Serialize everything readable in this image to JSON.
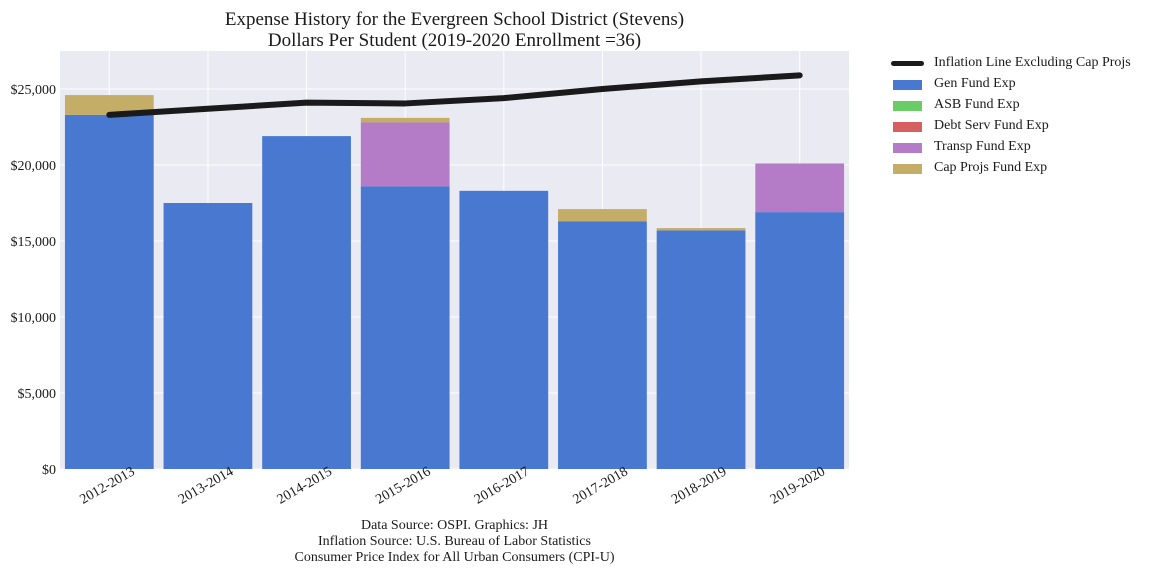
{
  "chart_data": {
    "type": "bar",
    "stacked": true,
    "title": "Expense History for the Evergreen School District (Stevens)",
    "subtitle": "Dollars Per Student (2019-2020 Enrollment =36)",
    "categories": [
      "2012-2013",
      "2013-2014",
      "2014-2015",
      "2015-2016",
      "2016-2017",
      "2017-2018",
      "2018-2019",
      "2019-2020"
    ],
    "series": [
      {
        "name": "Gen Fund Exp",
        "color": "#4878d0",
        "values": [
          23300,
          17500,
          21900,
          18600,
          18300,
          16300,
          15700,
          16900
        ]
      },
      {
        "name": "ASB Fund Exp",
        "color": "#6acc64",
        "values": [
          0,
          0,
          0,
          0,
          0,
          0,
          0,
          0
        ]
      },
      {
        "name": "Debt Serv Fund Exp",
        "color": "#d65f5f",
        "values": [
          0,
          0,
          0,
          0,
          0,
          0,
          0,
          0
        ]
      },
      {
        "name": "Transp Fund Exp",
        "color": "#b47cc7",
        "values": [
          0,
          0,
          0,
          4200,
          0,
          0,
          0,
          3200
        ]
      },
      {
        "name": "Cap Projs Fund Exp",
        "color": "#c4ad66",
        "values": [
          1300,
          0,
          0,
          300,
          0,
          800,
          150,
          0
        ]
      }
    ],
    "line": {
      "name": "Inflation Line Excluding Cap Projs",
      "color": "#1a1a1a",
      "values": [
        23300,
        23700,
        24100,
        24050,
        24400,
        25000,
        25500,
        25900
      ]
    },
    "ylim": [
      0,
      27500
    ],
    "yticks": [
      0,
      5000,
      10000,
      15000,
      20000,
      25000
    ],
    "ytick_labels": [
      "$0",
      "$5,000",
      "$10,000",
      "$15,000",
      "$20,000",
      "$25,000"
    ],
    "grid": true,
    "legend_position": "outside-right",
    "xlabel": "",
    "ylabel": ""
  },
  "sources": {
    "line1": "Data Source: OSPI. Graphics: JH",
    "line2": "Inflation Source: U.S. Bureau of Labor Statistics",
    "line3": "Consumer Price Index for All Urban Consumers (CPI-U)"
  }
}
